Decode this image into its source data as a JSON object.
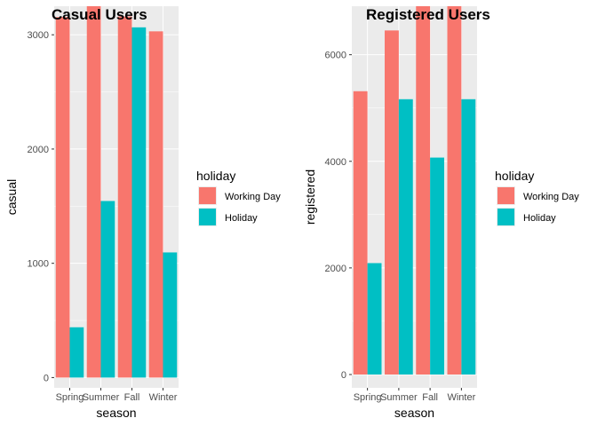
{
  "chart_data": [
    {
      "type": "bar",
      "title": "Casual Users",
      "xlabel": "season",
      "ylabel": "casual",
      "categories": [
        "Spring",
        "Summer",
        "Fall",
        "Winter"
      ],
      "series": [
        {
          "name": "Working Day",
          "values": [
            3155,
            3250,
            3160,
            3030
          ]
        },
        {
          "name": "Holiday",
          "values": [
            440,
            1545,
            3065,
            1095
          ]
        }
      ],
      "yticks": [
        0,
        1000,
        2000,
        3000
      ],
      "ylim": [
        -90,
        3250
      ],
      "grid": true,
      "legend": {
        "title": "holiday",
        "position": "right"
      }
    },
    {
      "type": "bar",
      "title": "Registered Users",
      "xlabel": "season",
      "ylabel": "registered",
      "categories": [
        "Spring",
        "Summer",
        "Fall",
        "Winter"
      ],
      "series": [
        {
          "name": "Working Day",
          "values": [
            5315,
            6455,
            6910,
            6910
          ]
        },
        {
          "name": "Holiday",
          "values": [
            2090,
            5165,
            4070,
            5165
          ]
        }
      ],
      "yticks": [
        0,
        2000,
        4000,
        6000
      ],
      "ylim": [
        -250,
        6910
      ],
      "grid": true,
      "legend": {
        "title": "holiday",
        "position": "right"
      }
    }
  ],
  "colors": {
    "working_day": "#F8766D",
    "holiday": "#00BFC4",
    "panel_bg": "#EBEBEB",
    "grid": "#FFFFFF"
  }
}
